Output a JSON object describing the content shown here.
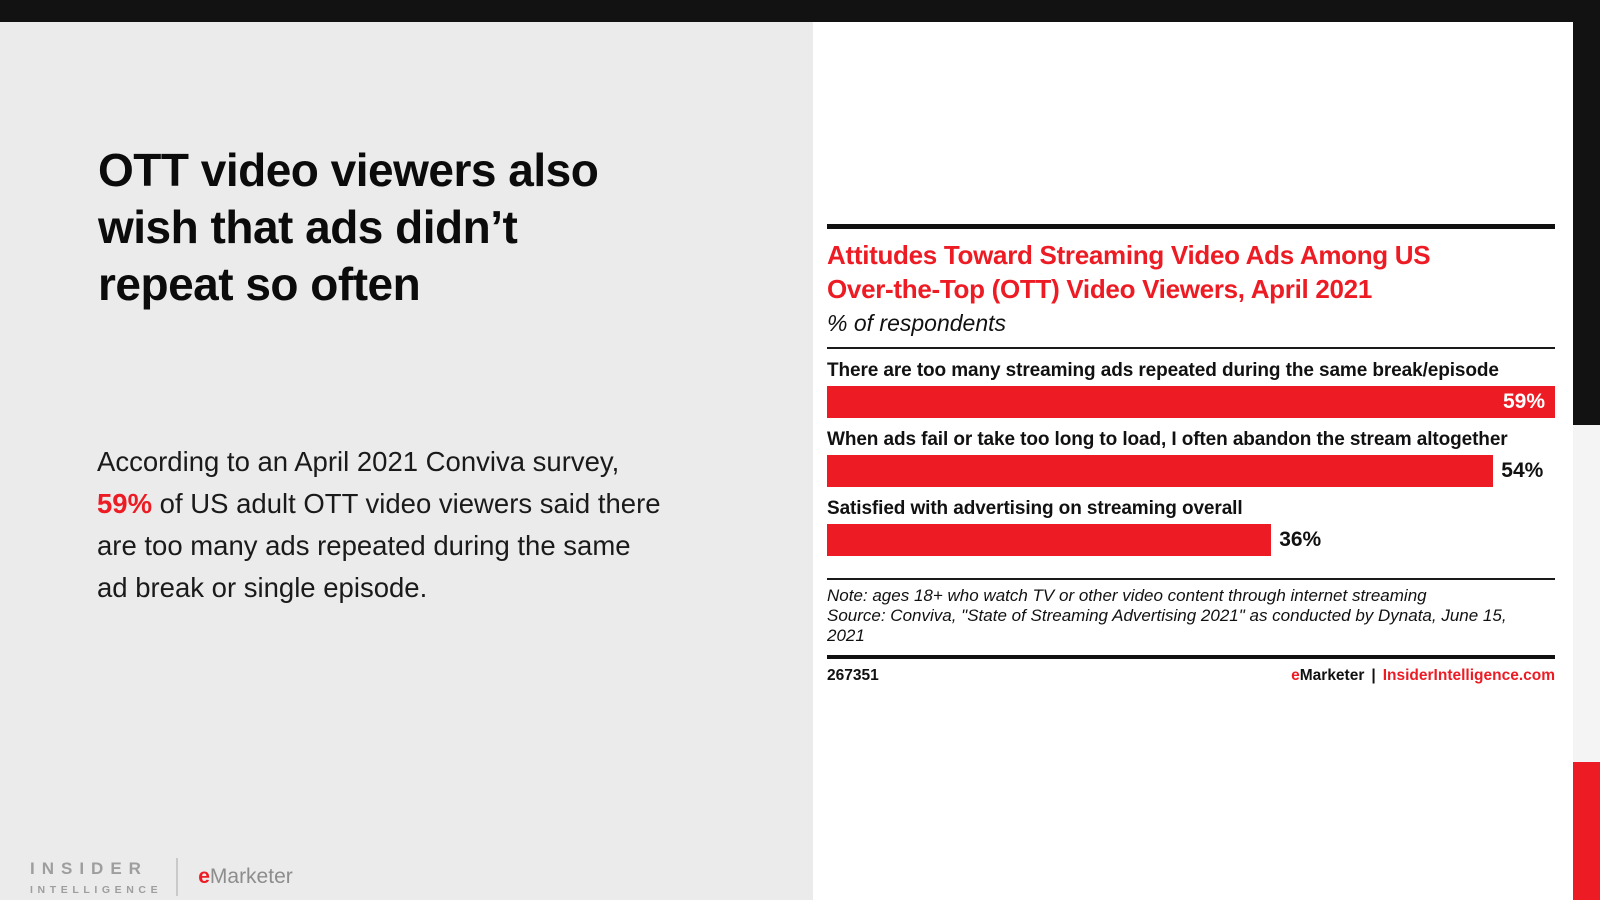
{
  "slide": {
    "headline_lines": [
      "OTT video viewers also",
      "wish that ads didn’t",
      "repeat so often"
    ],
    "body_lines": [
      [
        {
          "text": "According to an April 2021 Conviva survey,",
          "red": false
        }
      ],
      [
        {
          "text": "59%",
          "red": true
        },
        {
          "text": " of US adult OTT video viewers said there",
          "red": false
        }
      ],
      [
        {
          "text": "are too many ads repeated during the same",
          "red": false
        }
      ],
      [
        {
          "text": "ad break or single episode.",
          "red": false
        }
      ]
    ]
  },
  "branding": {
    "insider_line1": "INSIDER",
    "insider_line2": "INTELLIGENCE",
    "emarketer_e": "e",
    "emarketer_rest": "Marketer"
  },
  "chart": {
    "title_lines": [
      "Attitudes Toward Streaming Video Ads Among US",
      "Over-the-Top (OTT) Video Viewers, April 2021"
    ],
    "subtitle": "% of respondents",
    "note_lines": [
      "Note: ages 18+ who watch TV or other video content through internet streaming",
      "Source: Conviva, \"State of Streaming Advertising 2021\" as conducted by Dynata, June 15,",
      "2021"
    ],
    "chart_id": "267351",
    "footer_brand_e": "e",
    "footer_brand_rest": "Marketer",
    "footer_sep": "|",
    "footer_link": "InsiderIntelligence.com"
  },
  "chart_data": {
    "type": "bar",
    "orientation": "horizontal",
    "title": "Attitudes Toward Streaming Video Ads Among US Over-the-Top (OTT) Video Viewers, April 2021",
    "subtitle": "% of respondents",
    "categories": [
      "There are too many streaming ads repeated during the same break/episode",
      "When ads fail or take too long to load, I often abandon the stream altogether",
      "Satisfied with advertising on streaming overall"
    ],
    "values": [
      59,
      54,
      36
    ],
    "value_labels": [
      "59%",
      "54%",
      "36%"
    ],
    "unit": "%",
    "scale_max": 59,
    "bar_color": "#ed1c24",
    "grid": false,
    "legend": false
  },
  "colors": {
    "accent_red": "#ed1c24",
    "top_bar": "#121212",
    "left_panel_bg": "#ebebeb",
    "rail_gray": "#f4f4f4",
    "headline_text": "#0b0b0b",
    "bar_value_inside": "#ffffff"
  }
}
